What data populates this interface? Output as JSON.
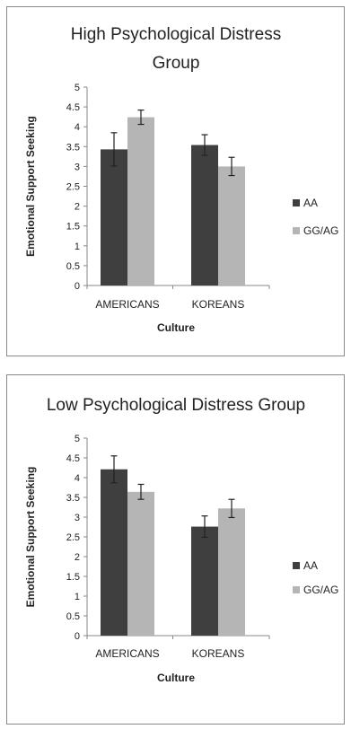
{
  "chart_data": [
    {
      "type": "bar",
      "title": "High Psychological Distress Group",
      "title_lines": [
        "High Psychological Distress",
        "Group"
      ],
      "xlabel": "Culture",
      "ylabel": "Emotional Support Seeking",
      "categories": [
        "AMERICANS",
        "KOREANS"
      ],
      "ylim": [
        0,
        5
      ],
      "yticks": [
        "0",
        "0.5",
        "1",
        "1.5",
        "2",
        "2.5",
        "3",
        "3.5",
        "4",
        "4.5",
        "5"
      ],
      "grid": false,
      "legend_position": "right",
      "series": [
        {
          "name": "AA",
          "color": "#3f3f3f",
          "values": [
            3.43,
            3.54
          ],
          "error": [
            0.42,
            0.26
          ]
        },
        {
          "name": "GG/AG",
          "color": "#b5b5b5",
          "values": [
            4.24,
            3.0
          ],
          "error": [
            0.18,
            0.23
          ]
        }
      ]
    },
    {
      "type": "bar",
      "title": "Low Psychological Distress Group",
      "title_lines": [
        "Low Psychological Distress Group"
      ],
      "xlabel": "Culture",
      "ylabel": "Emotional Support Seeking",
      "categories": [
        "AMERICANS",
        "KOREANS"
      ],
      "ylim": [
        0,
        5
      ],
      "yticks": [
        "0",
        "0.5",
        "1",
        "1.5",
        "2",
        "2.5",
        "3",
        "3.5",
        "4",
        "4.5",
        "5"
      ],
      "grid": false,
      "legend_position": "right",
      "series": [
        {
          "name": "AA",
          "color": "#3f3f3f",
          "values": [
            4.21,
            2.76
          ],
          "error": [
            0.34,
            0.27
          ]
        },
        {
          "name": "GG/AG",
          "color": "#b5b5b5",
          "values": [
            3.64,
            3.22
          ],
          "error": [
            0.19,
            0.23
          ]
        }
      ]
    }
  ]
}
